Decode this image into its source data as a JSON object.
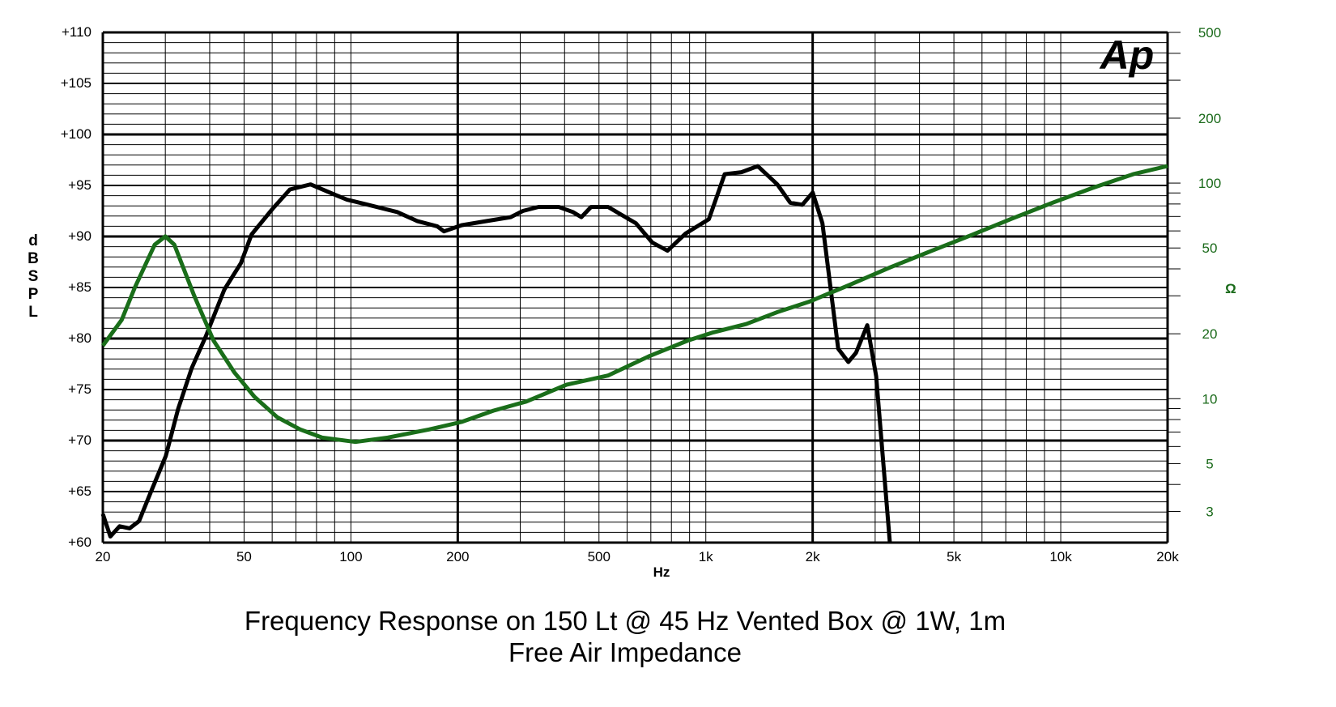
{
  "chart_data": {
    "type": "line",
    "title": "Frequency Response on 150 Lt @ 45 Hz Vented Box @ 1W, 1m",
    "subtitle": "Free Air Impedance",
    "xlabel": "Hz",
    "ylabel": "dB SPL",
    "ylabel_letters": [
      "d",
      "B",
      "S",
      "P",
      "L"
    ],
    "y2label": "Ω",
    "xscale": "log",
    "xlim": [
      20,
      20000
    ],
    "ylim": [
      60,
      110
    ],
    "y2lim": [
      2.15,
      500
    ],
    "y2scale": "log",
    "grid": true,
    "logo": "Ap",
    "x_ticks": [
      {
        "v": 20,
        "l": "20"
      },
      {
        "v": 50,
        "l": "50"
      },
      {
        "v": 100,
        "l": "100"
      },
      {
        "v": 200,
        "l": "200"
      },
      {
        "v": 500,
        "l": "500"
      },
      {
        "v": 1000,
        "l": "1k"
      },
      {
        "v": 2000,
        "l": "2k"
      },
      {
        "v": 5000,
        "l": "5k"
      },
      {
        "v": 10000,
        "l": "10k"
      },
      {
        "v": 20000,
        "l": "20k"
      }
    ],
    "y_ticks": [
      {
        "v": 110,
        "l": "+110"
      },
      {
        "v": 105,
        "l": "+105"
      },
      {
        "v": 100,
        "l": "+100"
      },
      {
        "v": 95,
        "l": "+95"
      },
      {
        "v": 90,
        "l": "+90"
      },
      {
        "v": 85,
        "l": "+85"
      },
      {
        "v": 80,
        "l": "+80"
      },
      {
        "v": 75,
        "l": "+75"
      },
      {
        "v": 70,
        "l": "+70"
      },
      {
        "v": 65,
        "l": "+65"
      },
      {
        "v": 60,
        "l": "+60"
      }
    ],
    "y2_ticks": [
      {
        "v": 500,
        "l": "500"
      },
      {
        "v": 200,
        "l": "200"
      },
      {
        "v": 100,
        "l": "100"
      },
      {
        "v": 50,
        "l": "50"
      },
      {
        "v": 20,
        "l": "20"
      },
      {
        "v": 10,
        "l": "10"
      },
      {
        "v": 5,
        "l": "5"
      },
      {
        "v": 3,
        "l": "3"
      }
    ],
    "series": [
      {
        "name": "SPL",
        "axis": "left",
        "color": "#000000",
        "x": [
          20,
          21,
          22.3,
          23.8,
          25.3,
          27.2,
          30.1,
          32.6,
          35.6,
          39,
          44,
          49,
          52.5,
          60.1,
          67.3,
          77,
          90,
          97.5,
          109,
          135,
          154,
          175,
          183,
          205,
          240,
          282,
          305,
          338,
          385,
          422,
          446,
          475,
          530,
          635,
          707,
          780,
          878,
          1020,
          1130,
          1260,
          1400,
          1590,
          1730,
          1870,
          2000,
          2130,
          2360,
          2520,
          2650,
          2850,
          3020,
          3300
        ],
        "y": [
          62.8,
          60.6,
          61.6,
          61.4,
          62.1,
          64.8,
          68.5,
          73.1,
          77.1,
          80.2,
          84.8,
          87.4,
          90.2,
          92.7,
          94.6,
          95.1,
          94.1,
          93.6,
          93.2,
          92.4,
          91.5,
          91,
          90.5,
          91.1,
          91.5,
          91.9,
          92.5,
          92.9,
          92.9,
          92.4,
          91.9,
          92.9,
          92.9,
          91.3,
          89.4,
          88.6,
          90.3,
          91.7,
          96.1,
          96.3,
          96.9,
          95.1,
          93.3,
          93.1,
          94.3,
          91.3,
          79,
          77.7,
          78.6,
          81.3,
          76.3,
          60
        ]
      },
      {
        "name": "Impedance",
        "axis": "right",
        "color": "#1a6e1a",
        "x": [
          20,
          22.6,
          24.6,
          28,
          30,
          31.8,
          36.2,
          41,
          47,
          53.5,
          62,
          72,
          83,
          103,
          127,
          166,
          205,
          252,
          312,
          405,
          530,
          690,
          890,
          1050,
          1300,
          1590,
          1960,
          2540,
          3300,
          4300,
          5600,
          7300,
          9500,
          12300,
          16000,
          20000
        ],
        "y": [
          17.6,
          23.2,
          32.7,
          51.8,
          56.6,
          51.8,
          30,
          18.6,
          13.2,
          10.2,
          8.2,
          7.2,
          6.6,
          6.3,
          6.6,
          7.2,
          7.8,
          8.8,
          9.7,
          11.6,
          12.8,
          15.7,
          18.6,
          20.3,
          22.2,
          25.2,
          28.2,
          33.7,
          40.6,
          48.3,
          57.4,
          68.5,
          81.2,
          95,
          110,
          120
        ]
      }
    ]
  }
}
